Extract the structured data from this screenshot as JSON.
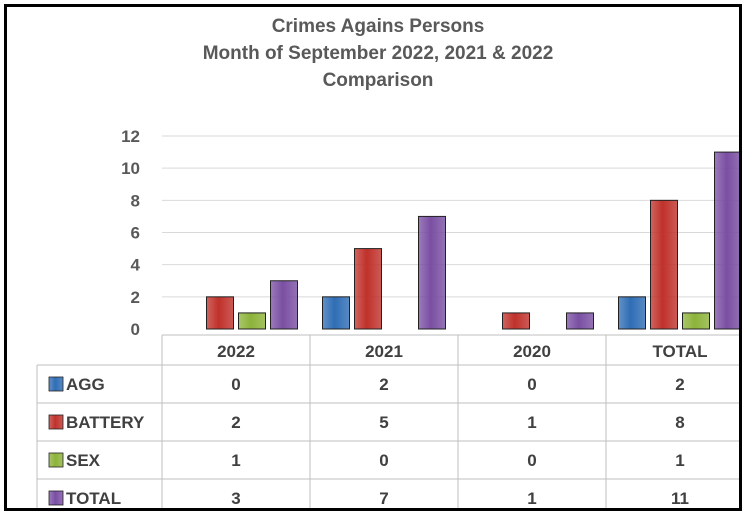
{
  "chart_data": {
    "type": "bar",
    "title": [
      "Crimes Agains Persons",
      "Month of September  2022, 2021 & 2022",
      "Comparison"
    ],
    "categories": [
      "2022",
      "2021",
      "2020",
      "TOTAL"
    ],
    "series": [
      {
        "name": "AGG",
        "values": [
          0,
          2,
          0,
          2
        ],
        "color": "#2F6DB5"
      },
      {
        "name": "BATTERY",
        "values": [
          2,
          5,
          1,
          8
        ],
        "color": "#C0312B"
      },
      {
        "name": "SEX",
        "values": [
          1,
          0,
          0,
          1
        ],
        "color": "#8DB33A"
      },
      {
        "name": "TOTAL",
        "values": [
          3,
          7,
          1,
          11
        ],
        "color": "#7A4FA3"
      }
    ],
    "ylim": [
      0,
      12
    ],
    "yticks": [
      0,
      2,
      4,
      6,
      8,
      10,
      12
    ],
    "grid": true,
    "legend": "data table (left of rows)",
    "data_table": true
  }
}
